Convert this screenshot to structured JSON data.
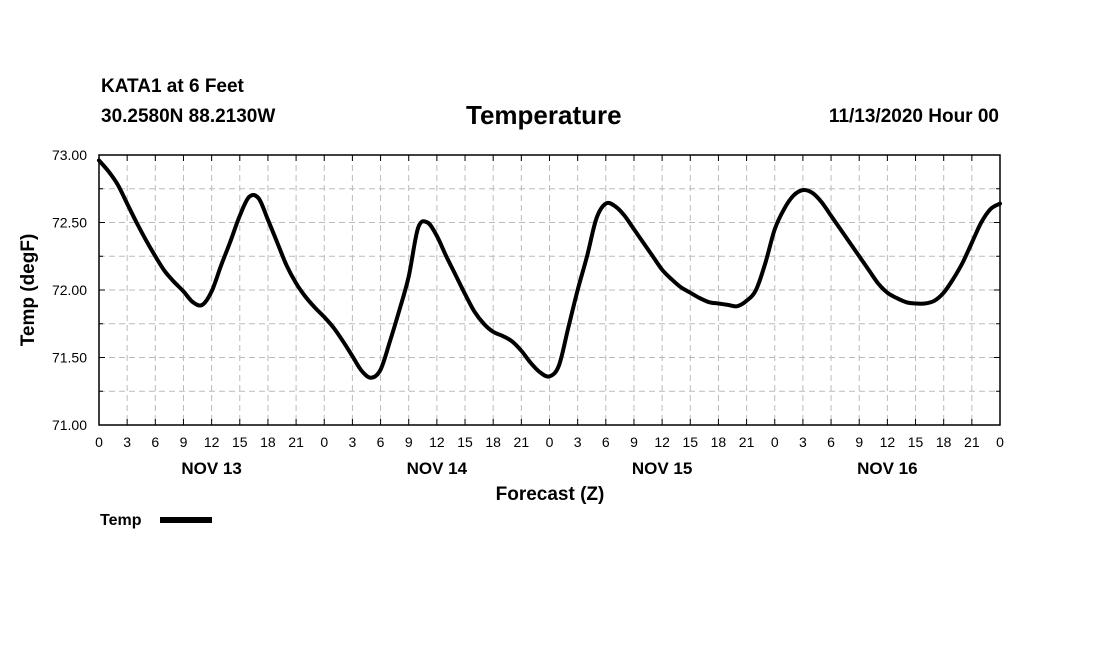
{
  "header": {
    "station": "KATA1 at 6 Feet",
    "coords": "30.2580N 88.2130W",
    "title": "Temperature",
    "run": "11/13/2020 Hour 00"
  },
  "chart_data": {
    "type": "line",
    "title": "Temperature",
    "xlabel": "Forecast (Z)",
    "ylabel": "Temp (degF)",
    "ylim": [
      71.0,
      73.0
    ],
    "yticks": [
      "71.00",
      "71.50",
      "72.00",
      "72.50",
      "73.00"
    ],
    "xlim_hours": [
      0,
      96
    ],
    "x_tick_labels": [
      "0",
      "3",
      "6",
      "9",
      "12",
      "15",
      "18",
      "21",
      "0",
      "3",
      "6",
      "9",
      "12",
      "15",
      "18",
      "21",
      "0",
      "3",
      "6",
      "9",
      "12",
      "15",
      "18",
      "21",
      "0",
      "3",
      "6",
      "9",
      "12",
      "15",
      "18",
      "21",
      "0"
    ],
    "day_labels": [
      {
        "label": "NOV 13",
        "hour": 12
      },
      {
        "label": "NOV 14",
        "hour": 36
      },
      {
        "label": "NOV 15",
        "hour": 60
      },
      {
        "label": "NOV 16",
        "hour": 84
      }
    ],
    "grid": true,
    "legend": [
      {
        "name": "Temp",
        "color": "#000000"
      }
    ],
    "series": [
      {
        "name": "Temp",
        "x": [
          0,
          1,
          2,
          3,
          4,
          5,
          6,
          7,
          8,
          9,
          10,
          11,
          12,
          13,
          14,
          15,
          16,
          17,
          18,
          19,
          20,
          21,
          22,
          23,
          24,
          25,
          26,
          27,
          28,
          29,
          30,
          31,
          32,
          33,
          34,
          35,
          36,
          37,
          38,
          39,
          40,
          41,
          42,
          43,
          44,
          45,
          46,
          47,
          48,
          49,
          50,
          51,
          52,
          53,
          54,
          55,
          56,
          57,
          58,
          59,
          60,
          61,
          62,
          63,
          64,
          65,
          66,
          67,
          68,
          69,
          70,
          71,
          72,
          73,
          74,
          75,
          76,
          77,
          78,
          79,
          80,
          81,
          82,
          83,
          84,
          85,
          86,
          87,
          88,
          89,
          90,
          91,
          92,
          93,
          94,
          95,
          96
        ],
        "values": [
          72.96,
          72.88,
          72.78,
          72.64,
          72.5,
          72.37,
          72.25,
          72.14,
          72.06,
          71.99,
          71.91,
          71.89,
          71.99,
          72.18,
          72.36,
          72.55,
          72.69,
          72.68,
          72.52,
          72.35,
          72.18,
          72.05,
          71.95,
          71.87,
          71.8,
          71.72,
          71.62,
          71.51,
          71.4,
          71.35,
          71.41,
          71.62,
          71.85,
          72.1,
          72.46,
          72.5,
          72.4,
          72.25,
          72.11,
          71.97,
          71.84,
          71.75,
          71.69,
          71.66,
          71.62,
          71.55,
          71.46,
          71.39,
          71.36,
          71.44,
          71.72,
          72.0,
          72.25,
          72.53,
          72.64,
          72.62,
          72.55,
          72.45,
          72.35,
          72.25,
          72.15,
          72.08,
          72.02,
          71.98,
          71.94,
          71.91,
          71.9,
          71.89,
          71.88,
          71.92,
          72.0,
          72.2,
          72.45,
          72.6,
          72.7,
          72.74,
          72.72,
          72.65,
          72.55,
          72.45,
          72.35,
          72.25,
          72.15,
          72.05,
          71.98,
          71.94,
          71.91,
          71.9,
          71.9,
          71.92,
          71.98,
          72.08,
          72.2,
          72.35,
          72.5,
          72.6,
          72.64
        ]
      }
    ]
  }
}
